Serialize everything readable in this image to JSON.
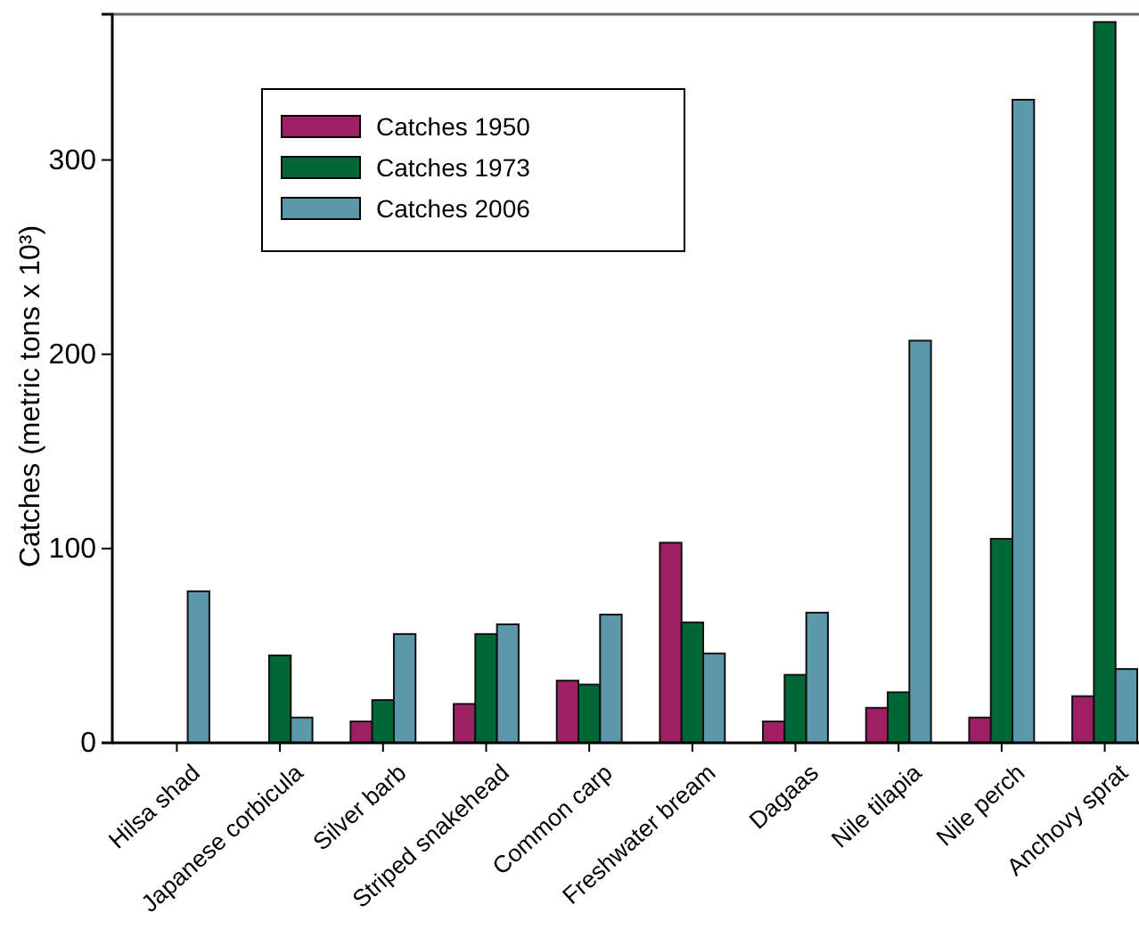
{
  "chart_data": {
    "type": "bar",
    "ylabel": "Catches (metric tons x 10³)",
    "categories": [
      "Hilsa shad",
      "Japanese corbicula",
      "Silver barb",
      "Striped snakehead",
      "Common carp",
      "Freshwater bream",
      "Dagaas",
      "Nile tilapia",
      "Nile perch",
      "Anchovy sprat"
    ],
    "series": [
      {
        "name": "Catches 1950",
        "color": "#9e1f63",
        "values": [
          null,
          null,
          11,
          20,
          32,
          103,
          11,
          18,
          13,
          24
        ]
      },
      {
        "name": "Catches 1973",
        "color": "#006837",
        "values": [
          null,
          45,
          22,
          56,
          30,
          62,
          35,
          26,
          105,
          371
        ]
      },
      {
        "name": "Catches 2006",
        "color": "#5b98ab",
        "values": [
          78,
          13,
          56,
          61,
          66,
          46,
          67,
          207,
          331,
          38
        ]
      }
    ],
    "ylim": [
      0,
      375
    ],
    "yticks": [
      0,
      100,
      200,
      300
    ],
    "grid": false,
    "legend": "top left"
  }
}
